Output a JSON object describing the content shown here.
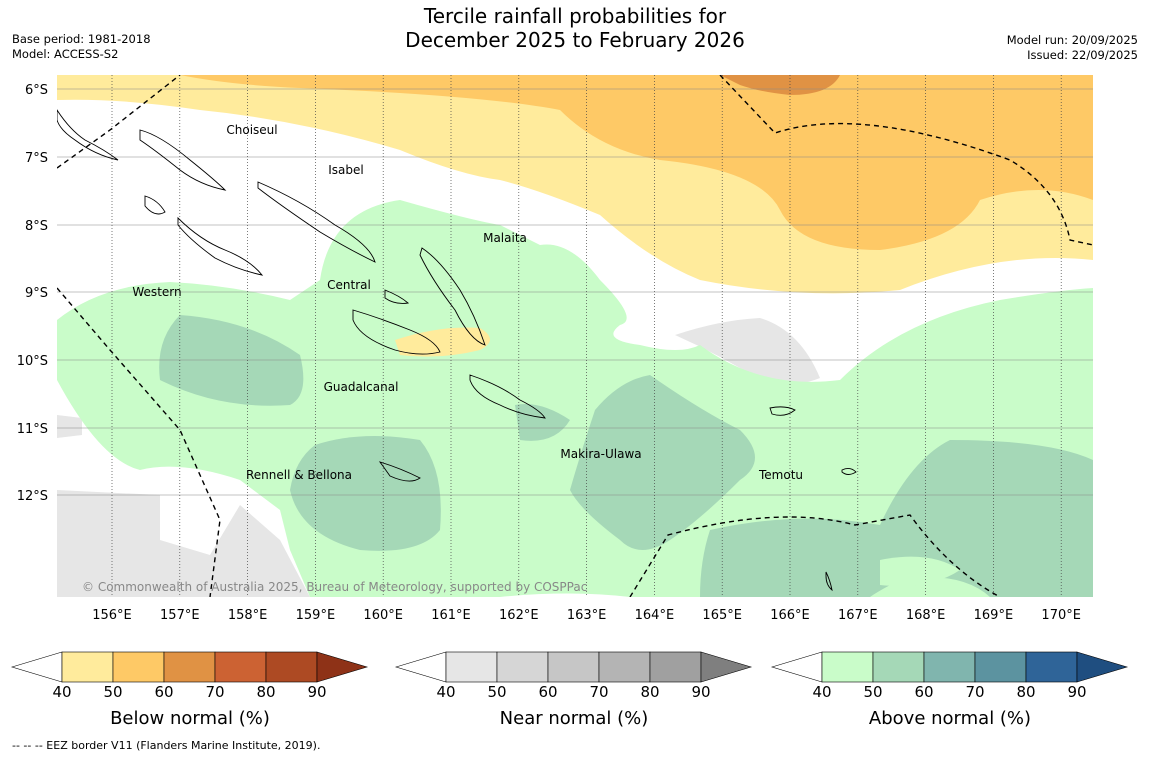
{
  "title": {
    "line1": "Tercile rainfall probabilities for",
    "line2": "December 2025 to February 2026"
  },
  "meta_left": {
    "base_period": "Base period: 1981-2018",
    "model": "Model: ACCESS-S2"
  },
  "meta_right": {
    "model_run": "Model run: 20/09/2025",
    "issued": "Issued: 22/09/2025"
  },
  "map": {
    "lat_labels": [
      "6°S",
      "7°S",
      "8°S",
      "9°S",
      "10°S",
      "11°S",
      "12°S"
    ],
    "lon_labels": [
      "156°E",
      "157°E",
      "158°E",
      "159°E",
      "160°E",
      "161°E",
      "162°E",
      "163°E",
      "164°E",
      "165°E",
      "166°E",
      "167°E",
      "168°E",
      "169°E",
      "170°E"
    ],
    "regions": [
      "Choiseul",
      "Isabel",
      "Malaita",
      "Western",
      "Central",
      "Guadalcanal",
      "Makira-Ulawa",
      "Rennell & Bellona",
      "Temotu"
    ],
    "copyright": "© Commonwealth of Australia 2025, Bureau of Meteorology, supported by COSPPac"
  },
  "colorbars": [
    {
      "label": "Below normal (%)",
      "ticks": [
        "40",
        "50",
        "60",
        "70",
        "80",
        "90"
      ],
      "colors": [
        "#ffffff",
        "#ffeb9c",
        "#fec966",
        "#e09244",
        "#cc6233",
        "#ad4a23",
        "#8e3217"
      ]
    },
    {
      "label": "Near normal (%)",
      "ticks": [
        "40",
        "50",
        "60",
        "70",
        "80",
        "90"
      ],
      "colors": [
        "#ffffff",
        "#e6e6e6",
        "#d6d6d6",
        "#c6c6c6",
        "#b4b4b4",
        "#a0a0a0",
        "#7f7f7f"
      ]
    },
    {
      "label": "Above normal (%)",
      "ticks": [
        "40",
        "50",
        "60",
        "70",
        "80",
        "90"
      ],
      "colors": [
        "#ffffff",
        "#c9fcc9",
        "#a5d8b7",
        "#80b5ae",
        "#5c93a0",
        "#2f6498",
        "#1f4e80"
      ]
    }
  ],
  "footnote": "--  --  -- EEZ border V11 (Flanders Marine Institute, 2019)."
}
